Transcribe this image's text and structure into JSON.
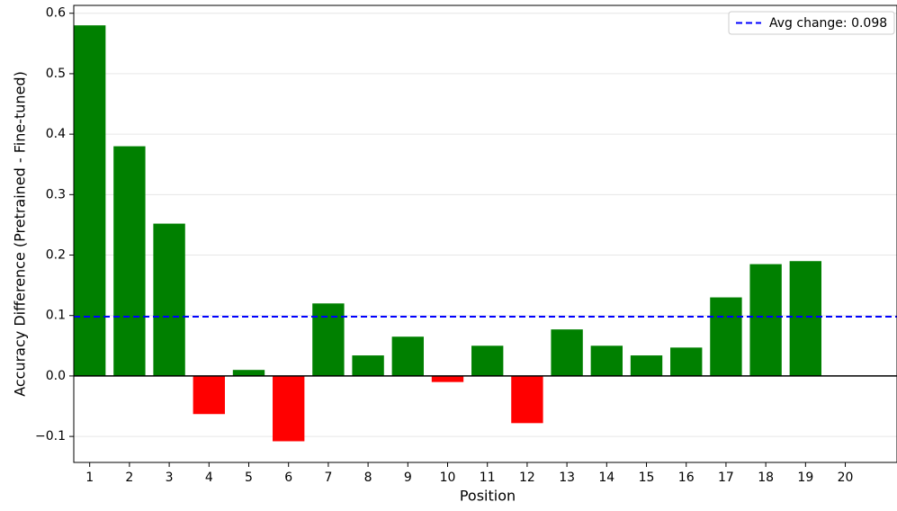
{
  "chart_data": {
    "type": "bar",
    "x_label": "Position",
    "y_label": "Accuracy Difference (Pretrained - Fine-tuned)",
    "x": [
      1,
      2,
      3,
      4,
      5,
      6,
      7,
      8,
      9,
      10,
      11,
      12,
      13,
      14,
      15,
      16,
      17,
      18,
      19,
      20
    ],
    "values": [
      0.58,
      0.38,
      0.252,
      -0.063,
      0.01,
      -0.108,
      0.12,
      0.034,
      0.065,
      -0.01,
      0.05,
      -0.078,
      0.077,
      0.05,
      0.034,
      0.047,
      0.13,
      0.185,
      0.19,
      0
    ],
    "positive_color": "green",
    "negative_color": "red",
    "xlim": [
      0.6,
      21.3
    ],
    "xticks": [
      1,
      2,
      3,
      4,
      5,
      6,
      7,
      8,
      9,
      10,
      11,
      12,
      13,
      14,
      15,
      16,
      17,
      18,
      19,
      20
    ],
    "ylim": [
      -0.143,
      0.613
    ],
    "yticks": [
      {
        "value": -0.1,
        "label": "−0.1"
      },
      {
        "value": 0,
        "label": "0.0"
      },
      0.1,
      0.2,
      0.3,
      0.4,
      0.5,
      0.6
    ],
    "grid": true,
    "reference_line": {
      "value": 0.098,
      "label": "Avg change: 0.098",
      "color": "blue"
    },
    "legend": "upper right"
  }
}
